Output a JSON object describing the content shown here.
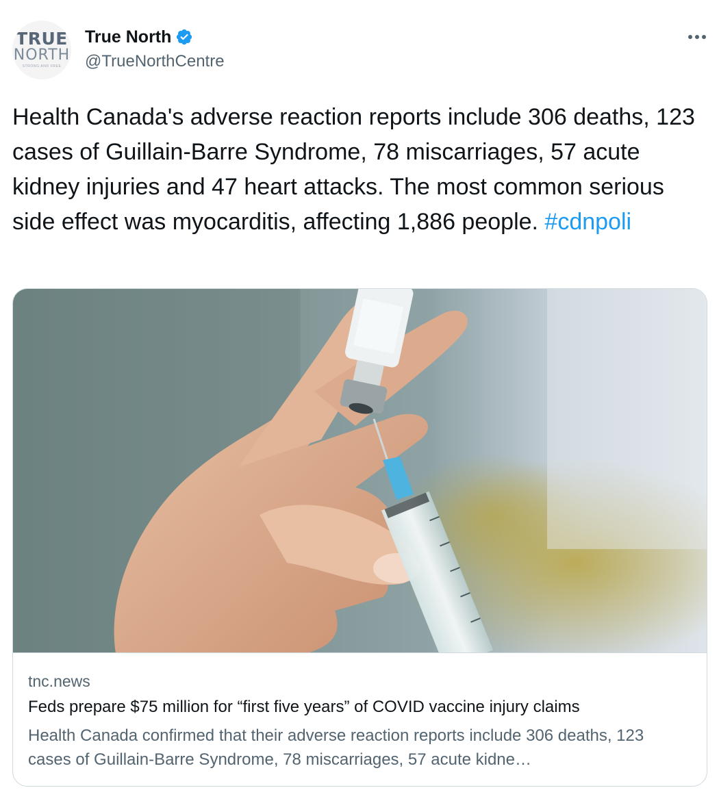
{
  "author": {
    "avatar_text_top": "TRUE",
    "avatar_text_bottom": "NORTH",
    "avatar_tagline": "STRONG AND FREE",
    "display_name": "True North",
    "verified": true,
    "handle": "@TrueNorthCentre"
  },
  "more_icon": "more-horizontal-icon",
  "tweet": {
    "text": "Health Canada's adverse reaction reports include 306 deaths, 123 cases of Guillain-Barre Syndrome, 78 miscarriages, 57 acute kidney injuries and 47 heart attacks. The most common serious side effect was myocarditis, affecting 1,886 people. ",
    "hashtag": "#cdnpoli"
  },
  "card": {
    "image_icon": "vaccine-syringe-photo",
    "domain": "tnc.news",
    "title": "Feds prepare $75 million for “first five years” of COVID vaccine injury claims",
    "description": "Health Canada confirmed that their adverse reaction reports include 306 deaths, 123 cases of Guillain-Barre Syndrome, 78 miscarriages, 57 acute kidne…"
  },
  "colors": {
    "link_blue": "#1d9bf0",
    "text_primary": "#0f1419",
    "text_secondary": "#536471",
    "border": "#cfd9de"
  }
}
